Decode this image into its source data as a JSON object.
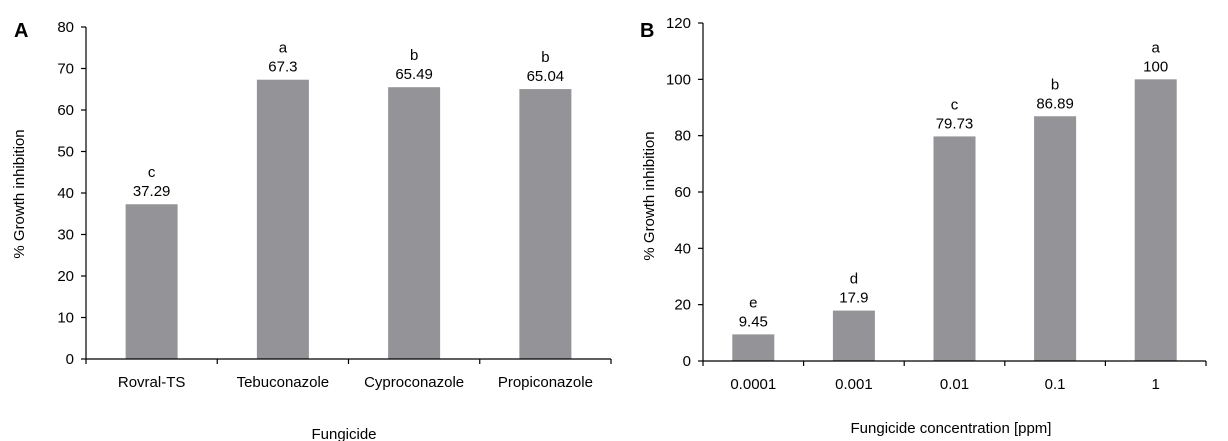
{
  "chart_data": [
    {
      "panel": "A",
      "type": "bar",
      "categories": [
        "Rovral-TS",
        "Tebuconazole",
        "Cyproconazole",
        "Propiconazole"
      ],
      "values": [
        37.29,
        67.3,
        65.49,
        65.04
      ],
      "value_labels": [
        "37.29",
        "67.3",
        "65.49",
        "65.04"
      ],
      "letters": [
        "c",
        "a",
        "b",
        "b"
      ],
      "xlabel": "Fungicide",
      "ylabel": "% Growth inhibition",
      "ylim": [
        0,
        80
      ],
      "yticks": [
        "0",
        "10",
        "20",
        "30",
        "40",
        "50",
        "60",
        "70",
        "80"
      ],
      "bar_color": "#939398",
      "grid": false
    },
    {
      "panel": "B",
      "type": "bar",
      "categories": [
        "0.0001",
        "0.001",
        "0.01",
        "0.1",
        "1"
      ],
      "values": [
        9.45,
        17.9,
        79.73,
        86.89,
        100
      ],
      "value_labels": [
        "9.45",
        "17.9",
        "79.73",
        "86.89",
        "100"
      ],
      "letters": [
        "e",
        "d",
        "c",
        "b",
        "a"
      ],
      "xlabel": "Fungicide concentration [ppm]",
      "ylabel": "% Growth inhibition",
      "ylim": [
        0,
        120
      ],
      "yticks": [
        "0",
        "20",
        "40",
        "60",
        "80",
        "100",
        "120"
      ],
      "bar_color": "#939398",
      "grid": false
    }
  ]
}
